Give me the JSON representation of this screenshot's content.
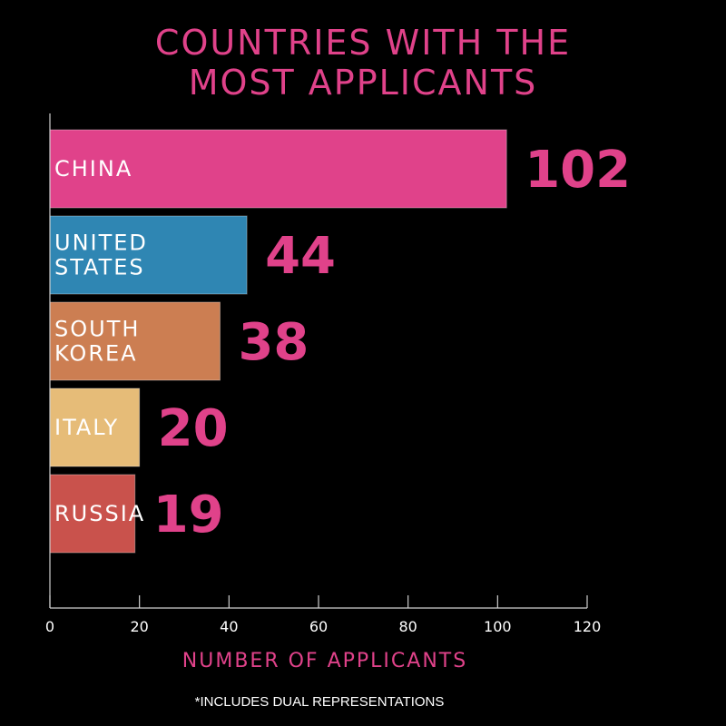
{
  "chart_data": {
    "type": "bar",
    "orientation": "horizontal",
    "title_lines": [
      "COUNTRIES WITH THE",
      "MOST APPLICANTS"
    ],
    "categories": [
      [
        "CHINA"
      ],
      [
        "UNITED",
        "STATES"
      ],
      [
        "SOUTH",
        "KOREA"
      ],
      [
        "ITALY"
      ],
      [
        "RUSSIA"
      ]
    ],
    "values": [
      102,
      44,
      38,
      20,
      19
    ],
    "value_labels": [
      "102",
      "44",
      "38",
      "20",
      "19"
    ],
    "colors": [
      "#e0428a",
      "#2f86b3",
      "#cc7e52",
      "#e6bc78",
      "#c9524c"
    ],
    "xlabel": "NUMBER OF APPLICANTS",
    "xlim": [
      0,
      120
    ],
    "xticks": [
      "0",
      "20",
      "40",
      "60",
      "80",
      "100",
      "120"
    ],
    "footnote": "*INCLUDES DUAL REPRESENTATIONS",
    "grid": false
  }
}
